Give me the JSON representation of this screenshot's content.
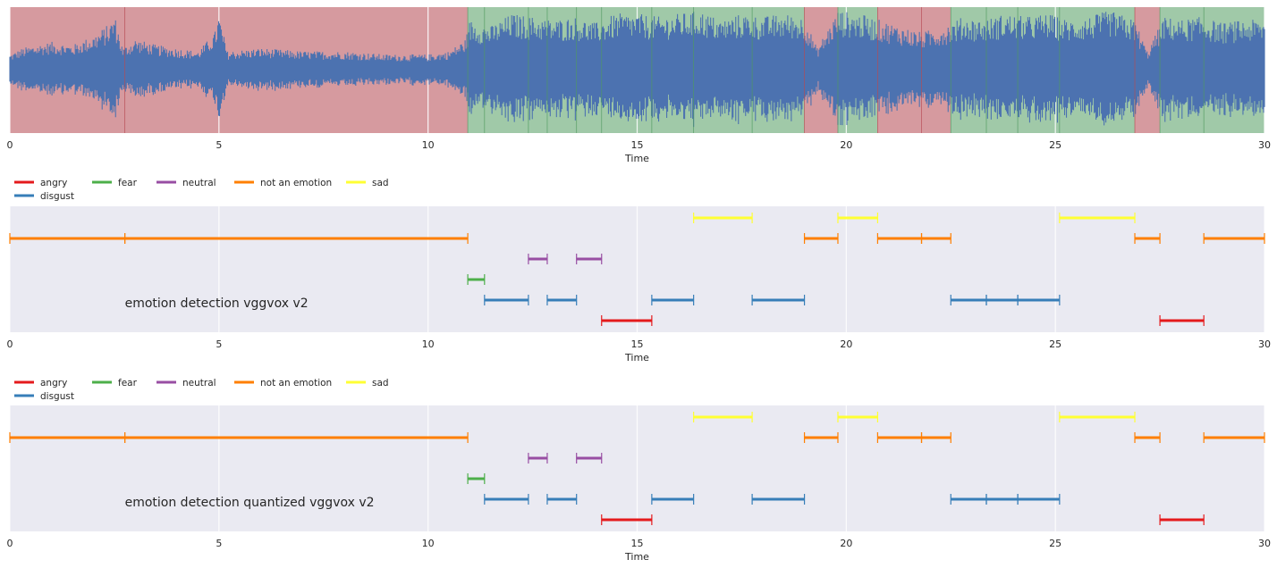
{
  "chart_data": [
    {
      "type": "area",
      "name": "waveform",
      "xlabel": "Time",
      "xlim": [
        0,
        30
      ],
      "xticks": [
        0,
        5,
        10,
        15,
        20,
        25,
        30
      ],
      "grid": true,
      "waveform_color": "#4c72b0",
      "segment_colors": {
        "red": "#d69a9f",
        "green": "#a0c9a8"
      },
      "segments": [
        {
          "start": 0,
          "end": 10.95,
          "color": "red"
        },
        {
          "start": 10.95,
          "end": 19.0,
          "color": "green"
        },
        {
          "start": 19.0,
          "end": 19.8,
          "color": "red"
        },
        {
          "start": 19.8,
          "end": 20.75,
          "color": "green"
        },
        {
          "start": 20.75,
          "end": 22.5,
          "color": "red"
        },
        {
          "start": 22.5,
          "end": 26.9,
          "color": "green"
        },
        {
          "start": 26.9,
          "end": 27.5,
          "color": "red"
        },
        {
          "start": 27.5,
          "end": 30,
          "color": "green"
        }
      ],
      "boundaries": [
        2.75,
        10.95,
        11.35,
        12.4,
        12.85,
        13.55,
        14.15,
        15.35,
        16.35,
        17.75,
        19.0,
        19.8,
        20.75,
        21.8,
        22.5,
        23.35,
        24.1,
        25.1,
        26.9,
        27.5,
        28.55
      ],
      "amplitude_envelope": [
        [
          0,
          0.25
        ],
        [
          0.3,
          0.35
        ],
        [
          0.6,
          0.4
        ],
        [
          1.0,
          0.45
        ],
        [
          1.5,
          0.4
        ],
        [
          2.0,
          0.55
        ],
        [
          2.4,
          0.75
        ],
        [
          2.5,
          0.9
        ],
        [
          2.7,
          0.35
        ],
        [
          3.0,
          0.5
        ],
        [
          3.5,
          0.4
        ],
        [
          4.0,
          0.35
        ],
        [
          4.5,
          0.3
        ],
        [
          4.9,
          0.6
        ],
        [
          5.0,
          0.9
        ],
        [
          5.2,
          0.3
        ],
        [
          6.0,
          0.35
        ],
        [
          7.0,
          0.3
        ],
        [
          8.0,
          0.3
        ],
        [
          9.0,
          0.25
        ],
        [
          10.0,
          0.25
        ],
        [
          10.5,
          0.3
        ],
        [
          10.9,
          0.5
        ],
        [
          11.0,
          0.8
        ],
        [
          11.5,
          0.7
        ],
        [
          12.0,
          0.9
        ],
        [
          12.5,
          0.85
        ],
        [
          13.0,
          0.8
        ],
        [
          13.5,
          0.85
        ],
        [
          14.0,
          0.75
        ],
        [
          14.5,
          0.9
        ],
        [
          15.0,
          0.9
        ],
        [
          15.5,
          0.85
        ],
        [
          16.0,
          0.9
        ],
        [
          16.5,
          0.95
        ],
        [
          17.0,
          0.8
        ],
        [
          17.5,
          0.9
        ],
        [
          18.0,
          0.85
        ],
        [
          18.5,
          0.9
        ],
        [
          19.0,
          0.85
        ],
        [
          19.3,
          0.35
        ],
        [
          19.8,
          0.95
        ],
        [
          20.3,
          0.9
        ],
        [
          20.8,
          0.8
        ],
        [
          21.3,
          0.7
        ],
        [
          21.8,
          0.6
        ],
        [
          22.3,
          0.7
        ],
        [
          22.8,
          0.85
        ],
        [
          23.3,
          0.8
        ],
        [
          23.8,
          0.9
        ],
        [
          24.3,
          0.85
        ],
        [
          24.8,
          0.9
        ],
        [
          25.3,
          0.8
        ],
        [
          25.8,
          0.85
        ],
        [
          26.3,
          0.95
        ],
        [
          26.9,
          0.8
        ],
        [
          27.2,
          0.3
        ],
        [
          27.6,
          0.85
        ],
        [
          28.0,
          0.8
        ],
        [
          28.5,
          0.85
        ],
        [
          29.0,
          0.75
        ],
        [
          29.5,
          0.8
        ],
        [
          30,
          0.8
        ]
      ]
    },
    {
      "type": "timeline",
      "name": "emotion-detection-vggvox-v2",
      "annotation": "emotion detection vggvox v2",
      "xlabel": "Time",
      "xlim": [
        0,
        30
      ],
      "xticks": [
        0,
        5,
        10,
        15,
        20,
        25,
        30
      ],
      "grid": true,
      "legend": {
        "placement": "top-left",
        "entries": [
          {
            "label": "angry",
            "color": "#e41a1c"
          },
          {
            "label": "disgust",
            "color": "#377eb8"
          },
          {
            "label": "fear",
            "color": "#4daf4a"
          },
          {
            "label": "neutral",
            "color": "#984ea3"
          },
          {
            "label": "not an emotion",
            "color": "#ff7f00"
          },
          {
            "label": "sad",
            "color": "#ffff33"
          }
        ]
      },
      "lanes": [
        "sad",
        "not an emotion",
        "neutral",
        "fear",
        "disgust",
        "angry"
      ],
      "segments": [
        {
          "label": "not an emotion",
          "start": 0,
          "end": 2.75
        },
        {
          "label": "not an emotion",
          "start": 2.75,
          "end": 10.95
        },
        {
          "label": "fear",
          "start": 10.95,
          "end": 11.35
        },
        {
          "label": "disgust",
          "start": 11.35,
          "end": 12.4
        },
        {
          "label": "neutral",
          "start": 12.4,
          "end": 12.85
        },
        {
          "label": "disgust",
          "start": 12.85,
          "end": 13.55
        },
        {
          "label": "neutral",
          "start": 13.55,
          "end": 14.15
        },
        {
          "label": "angry",
          "start": 14.15,
          "end": 15.35
        },
        {
          "label": "disgust",
          "start": 15.35,
          "end": 16.35
        },
        {
          "label": "sad",
          "start": 16.35,
          "end": 17.75
        },
        {
          "label": "disgust",
          "start": 17.75,
          "end": 19.0
        },
        {
          "label": "not an emotion",
          "start": 19.0,
          "end": 19.8
        },
        {
          "label": "sad",
          "start": 19.8,
          "end": 20.75
        },
        {
          "label": "not an emotion",
          "start": 20.75,
          "end": 21.8
        },
        {
          "label": "not an emotion",
          "start": 21.8,
          "end": 22.5
        },
        {
          "label": "disgust",
          "start": 22.5,
          "end": 23.35
        },
        {
          "label": "disgust",
          "start": 23.35,
          "end": 24.1
        },
        {
          "label": "disgust",
          "start": 24.1,
          "end": 25.1
        },
        {
          "label": "sad",
          "start": 25.1,
          "end": 26.9
        },
        {
          "label": "not an emotion",
          "start": 26.9,
          "end": 27.5
        },
        {
          "label": "angry",
          "start": 27.5,
          "end": 28.55
        },
        {
          "label": "not an emotion",
          "start": 28.55,
          "end": 30.0
        }
      ]
    },
    {
      "type": "timeline",
      "name": "emotion-detection-quantized-vggvox-v2",
      "annotation": "emotion detection quantized vggvox v2",
      "xlabel": "Time",
      "xlim": [
        0,
        30
      ],
      "xticks": [
        0,
        5,
        10,
        15,
        20,
        25,
        30
      ],
      "grid": true,
      "legend": {
        "placement": "top-left",
        "entries": [
          {
            "label": "angry",
            "color": "#e41a1c"
          },
          {
            "label": "disgust",
            "color": "#377eb8"
          },
          {
            "label": "fear",
            "color": "#4daf4a"
          },
          {
            "label": "neutral",
            "color": "#984ea3"
          },
          {
            "label": "not an emotion",
            "color": "#ff7f00"
          },
          {
            "label": "sad",
            "color": "#ffff33"
          }
        ]
      },
      "lanes": [
        "sad",
        "not an emotion",
        "neutral",
        "fear",
        "disgust",
        "angry"
      ],
      "segments": [
        {
          "label": "not an emotion",
          "start": 0,
          "end": 2.75
        },
        {
          "label": "not an emotion",
          "start": 2.75,
          "end": 10.95
        },
        {
          "label": "fear",
          "start": 10.95,
          "end": 11.35
        },
        {
          "label": "disgust",
          "start": 11.35,
          "end": 12.4
        },
        {
          "label": "neutral",
          "start": 12.4,
          "end": 12.85
        },
        {
          "label": "disgust",
          "start": 12.85,
          "end": 13.55
        },
        {
          "label": "neutral",
          "start": 13.55,
          "end": 14.15
        },
        {
          "label": "angry",
          "start": 14.15,
          "end": 15.35
        },
        {
          "label": "disgust",
          "start": 15.35,
          "end": 16.35
        },
        {
          "label": "sad",
          "start": 16.35,
          "end": 17.75
        },
        {
          "label": "disgust",
          "start": 17.75,
          "end": 19.0
        },
        {
          "label": "not an emotion",
          "start": 19.0,
          "end": 19.8
        },
        {
          "label": "sad",
          "start": 19.8,
          "end": 20.75
        },
        {
          "label": "not an emotion",
          "start": 20.75,
          "end": 21.8
        },
        {
          "label": "not an emotion",
          "start": 21.8,
          "end": 22.5
        },
        {
          "label": "disgust",
          "start": 22.5,
          "end": 23.35
        },
        {
          "label": "disgust",
          "start": 23.35,
          "end": 24.1
        },
        {
          "label": "disgust",
          "start": 24.1,
          "end": 25.1
        },
        {
          "label": "sad",
          "start": 25.1,
          "end": 26.9
        },
        {
          "label": "not an emotion",
          "start": 26.9,
          "end": 27.5
        },
        {
          "label": "angry",
          "start": 27.5,
          "end": 28.55
        },
        {
          "label": "not an emotion",
          "start": 28.55,
          "end": 30.0
        }
      ]
    }
  ]
}
